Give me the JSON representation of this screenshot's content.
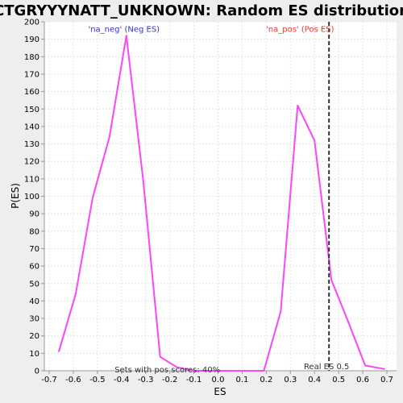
{
  "chart_data": {
    "type": "line",
    "title": "CTGRYYYNATT_UNKNOWN: Random ES distribution",
    "xlabel": "ES",
    "ylabel": "P(ES)",
    "xlim": [
      -0.72,
      0.74
    ],
    "ylim": [
      0,
      200
    ],
    "x_ticks": [
      -0.7,
      -0.6,
      -0.5,
      -0.4,
      -0.3,
      -0.2,
      -0.1,
      0.0,
      0.1,
      0.2,
      0.3,
      0.4,
      0.5,
      0.6,
      0.7
    ],
    "x_tick_labels": [
      "-0.7",
      "-0.6",
      "-0.5",
      "-0.4",
      "-0.3",
      "-0.2",
      "-0.1",
      "0.0",
      "0.1",
      "0.2",
      "0.3",
      "0.4",
      "0.5",
      "0.6",
      "0.7"
    ],
    "y_ticks": [
      0,
      10,
      20,
      30,
      40,
      50,
      60,
      70,
      80,
      90,
      100,
      110,
      120,
      130,
      140,
      150,
      160,
      170,
      180,
      190,
      200
    ],
    "grid": true,
    "line_color": "#ff44ff",
    "series": [
      {
        "name": "",
        "x": [
          -0.66,
          -0.59,
          -0.52,
          -0.45,
          -0.38,
          -0.31,
          -0.24,
          -0.17,
          -0.1,
          -0.03,
          0.04,
          0.11,
          0.19,
          0.26,
          0.33,
          0.4,
          0.47,
          0.54,
          0.61,
          0.69
        ],
        "y": [
          11,
          44,
          99,
          134,
          192,
          109,
          8,
          2,
          0,
          0,
          0,
          0,
          0,
          34,
          152,
          132,
          52,
          28,
          3,
          1
        ]
      }
    ],
    "vertical_line": {
      "x": 0.46,
      "label": "Real ES 0.5",
      "color": "#333333"
    },
    "annotations": [
      {
        "text": "'na_neg' (Neg ES)",
        "x": -0.39,
        "y": 196,
        "color": "#3333cc"
      },
      {
        "text": "'na_pos' (Pos ES)",
        "x": 0.34,
        "y": 196,
        "color": "#ee3333"
      },
      {
        "text": "Sets with pos scores: 40%",
        "x": -0.21,
        "y": 1,
        "color": "#333333"
      }
    ]
  }
}
